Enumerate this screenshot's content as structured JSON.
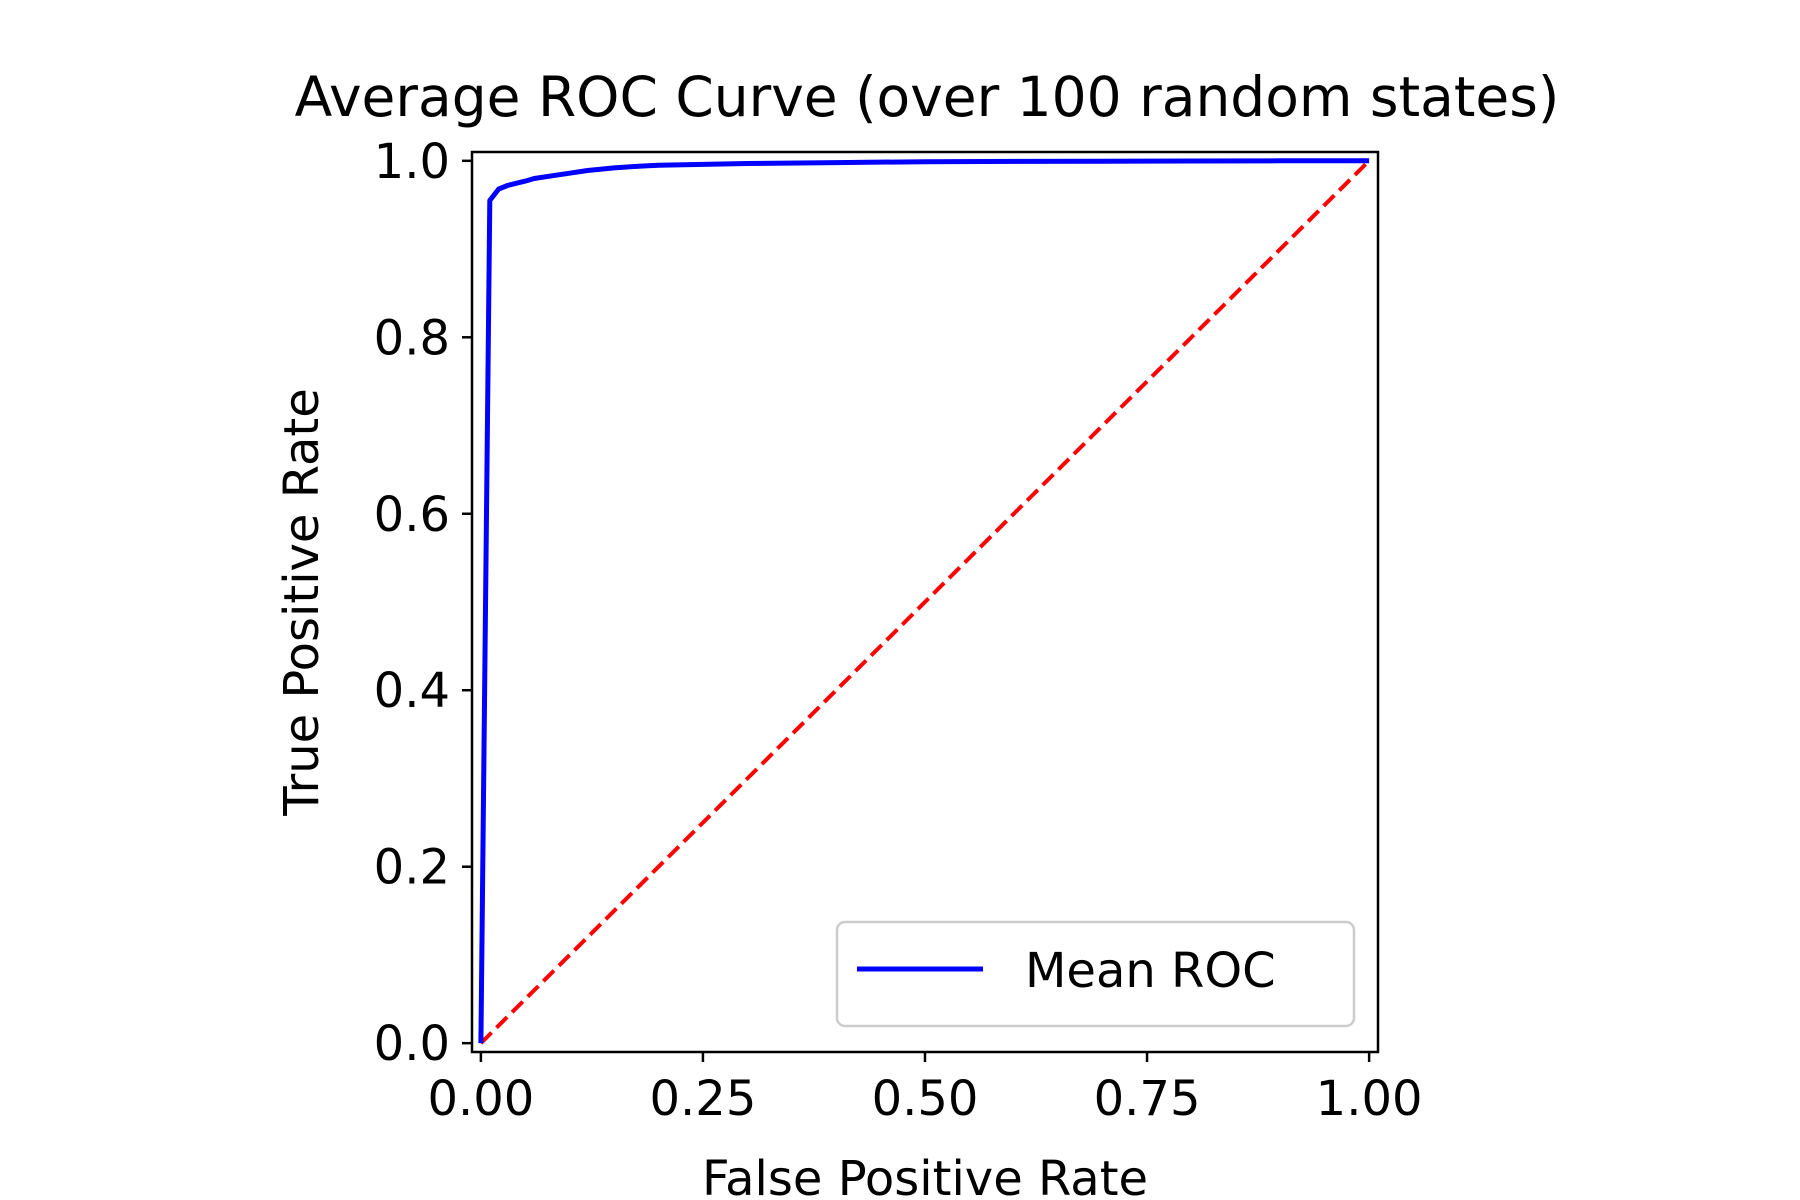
{
  "chart_data": {
    "type": "line",
    "title": "Average ROC Curve (over 100 random states)",
    "xlabel": "False Positive Rate",
    "ylabel": "True Positive Rate",
    "xlim": [
      -0.01,
      1.01
    ],
    "ylim": [
      -0.01,
      1.01
    ],
    "xticks": [
      0.0,
      0.25,
      0.5,
      0.75,
      1.0
    ],
    "xtick_labels": [
      "0.00",
      "0.25",
      "0.50",
      "0.75",
      "1.00"
    ],
    "yticks": [
      0.0,
      0.2,
      0.4,
      0.6,
      0.8,
      1.0
    ],
    "ytick_labels": [
      "0.0",
      "0.2",
      "0.4",
      "0.6",
      "0.8",
      "1.0"
    ],
    "grid": false,
    "legend": {
      "position": "lower-right",
      "entries": [
        "Mean ROC"
      ]
    },
    "series": [
      {
        "name": "Mean ROC",
        "color": "#0000ff",
        "style": "solid",
        "x": [
          0.0,
          0.01,
          0.02,
          0.03,
          0.05,
          0.06,
          0.08,
          0.1,
          0.12,
          0.15,
          0.18,
          0.2,
          0.25,
          0.3,
          0.4,
          0.5,
          0.6,
          0.7,
          0.8,
          0.9,
          1.0
        ],
        "y": [
          0.0,
          0.955,
          0.968,
          0.972,
          0.977,
          0.98,
          0.983,
          0.986,
          0.989,
          0.992,
          0.994,
          0.995,
          0.996,
          0.997,
          0.998,
          0.999,
          0.9993,
          0.9996,
          0.9998,
          1.0,
          1.0
        ]
      },
      {
        "color": "#ff0000",
        "style": "dashed",
        "x": [
          0.0,
          1.0
        ],
        "y": [
          0.0,
          1.0
        ]
      }
    ]
  }
}
